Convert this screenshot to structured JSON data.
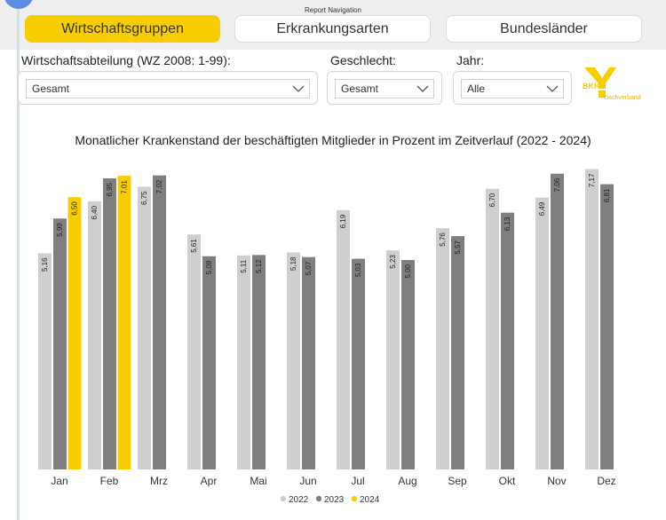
{
  "header": {
    "report_nav_label": "Report Navigation",
    "buttons": [
      {
        "label": "Wirtschaftsgruppen",
        "active": true
      },
      {
        "label": "Erkrankungsarten",
        "active": false
      },
      {
        "label": "Bundesländer",
        "active": false
      }
    ]
  },
  "filters": {
    "sector": {
      "label": "Wirtschaftsabteilung (WZ 2008: 1-99):",
      "value": "Gesamt"
    },
    "gender": {
      "label": "Geschlecht:",
      "value": "Gesamt"
    },
    "year": {
      "label": "Jahr:",
      "value": "Alle"
    }
  },
  "logo": {
    "text_main": "BKK",
    "text_sub": "Dachverband",
    "color": "#f7cd00"
  },
  "chart_data": {
    "type": "bar",
    "title": "Monatlicher Krankenstand der beschäftigten Mitglieder in Prozent im Zeitverlauf (2022 - 2024)",
    "categories": [
      "Jan",
      "Feb",
      "Mrz",
      "Apr",
      "Mai",
      "Jun",
      "Jul",
      "Aug",
      "Sep",
      "Okt",
      "Nov",
      "Dez"
    ],
    "series": [
      {
        "name": "2022",
        "color": "#cfcfcf",
        "values": [
          5.16,
          6.4,
          6.75,
          5.61,
          5.11,
          5.18,
          6.19,
          5.23,
          5.76,
          6.7,
          6.49,
          7.17
        ]
      },
      {
        "name": "2023",
        "color": "#7f7f7f",
        "values": [
          5.99,
          6.95,
          7.02,
          5.09,
          5.12,
          5.07,
          5.03,
          5.0,
          5.57,
          6.13,
          7.06,
          6.81
        ]
      },
      {
        "name": "2024",
        "color": "#f7cd00",
        "values": [
          6.5,
          7.01,
          null,
          null,
          null,
          null,
          null,
          null,
          null,
          null,
          null,
          null
        ]
      }
    ],
    "value_labels": [
      [
        "5,16",
        "6,40",
        "6,75",
        "5,61",
        "5,11",
        "5,18",
        "6,19",
        "5,23",
        "5,76",
        "6,70",
        "6,49",
        "7,17"
      ],
      [
        "5,99",
        "6,95",
        "7,02",
        "5,09",
        "5,12",
        "5,07",
        "5,03",
        "5,00",
        "5,57",
        "6,13",
        "7,06",
        "6,81"
      ],
      [
        "6,50",
        "7,01",
        "",
        "",
        "",
        "",
        "",
        "",
        "",
        "",
        "",
        ""
      ]
    ],
    "ylim": [
      0,
      7.5
    ],
    "grid": false,
    "legend": "bottom-center"
  }
}
